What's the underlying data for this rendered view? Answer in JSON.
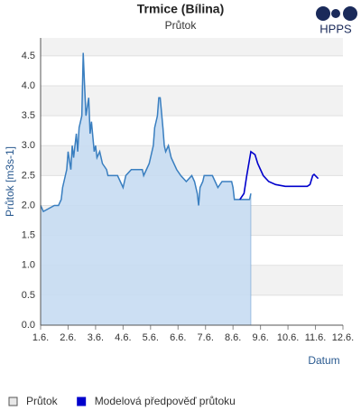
{
  "chart_data": {
    "type": "area",
    "title": "Trmice (Bílina)",
    "subtitle": "Průtok",
    "logo": "HPPS",
    "xlabel": "Datum",
    "ylabel": "Průtok [m3s-1]",
    "xlim": [
      1,
      12
    ],
    "ylim": [
      0,
      4.8
    ],
    "xticks": [
      {
        "value": 1,
        "label": "1.6."
      },
      {
        "value": 2,
        "label": "2.6."
      },
      {
        "value": 3,
        "label": "3.6."
      },
      {
        "value": 4,
        "label": "4.6."
      },
      {
        "value": 5,
        "label": "5.6."
      },
      {
        "value": 6,
        "label": "6.6."
      },
      {
        "value": 7,
        "label": "7.6."
      },
      {
        "value": 8,
        "label": "8.6."
      },
      {
        "value": 9,
        "label": "9.6."
      },
      {
        "value": 10,
        "label": "10.6."
      },
      {
        "value": 11,
        "label": "11.6."
      },
      {
        "value": 12,
        "label": "12.6."
      }
    ],
    "yticks": [
      {
        "value": 0,
        "label": "0.0"
      },
      0.5,
      {
        "value": 1,
        "label": "1.0"
      },
      1.5,
      {
        "value": 2,
        "label": "2.0"
      },
      2.5,
      {
        "value": 3,
        "label": "3.0"
      },
      3.5,
      {
        "value": 4,
        "label": "4.0"
      },
      4.5
    ],
    "grid": true,
    "series": [
      {
        "name": "Průtok",
        "kind": "area",
        "color": "#3a7fc0",
        "fill": "#c6dcf2",
        "x": [
          1.0,
          1.1,
          1.5,
          1.65,
          1.75,
          1.8,
          1.9,
          1.95,
          2.0,
          2.1,
          2.15,
          2.2,
          2.3,
          2.35,
          2.4,
          2.5,
          2.55,
          2.6,
          2.65,
          2.75,
          2.8,
          2.85,
          2.95,
          3.0,
          3.05,
          3.15,
          3.25,
          3.4,
          3.45,
          3.8,
          3.9,
          4.0,
          4.1,
          4.3,
          4.7,
          4.75,
          4.85,
          4.95,
          5.1,
          5.15,
          5.25,
          5.3,
          5.35,
          5.45,
          5.5,
          5.55,
          5.65,
          5.75,
          5.95,
          6.1,
          6.3,
          6.5,
          6.6,
          6.7,
          6.75,
          6.8,
          6.9,
          6.95,
          7.25,
          7.35,
          7.45,
          7.6,
          7.95,
          8.0,
          8.05,
          8.6,
          8.65
        ],
        "values": [
          2.0,
          1.9,
          2.0,
          2.0,
          2.1,
          2.3,
          2.5,
          2.6,
          2.9,
          2.6,
          3.0,
          2.8,
          3.2,
          2.9,
          3.3,
          3.5,
          4.55,
          4.0,
          3.5,
          3.8,
          3.2,
          3.4,
          2.9,
          3.0,
          2.8,
          2.9,
          2.7,
          2.6,
          2.5,
          2.5,
          2.4,
          2.3,
          2.5,
          2.6,
          2.6,
          2.5,
          2.6,
          2.7,
          3.0,
          3.3,
          3.5,
          3.8,
          3.8,
          3.3,
          3.0,
          2.9,
          3.0,
          2.8,
          2.6,
          2.5,
          2.4,
          2.5,
          2.4,
          2.2,
          2.0,
          2.3,
          2.4,
          2.5,
          2.5,
          2.4,
          2.3,
          2.4,
          2.4,
          2.3,
          2.1,
          2.1,
          2.2
        ]
      },
      {
        "name": "Modelová předpověď průtoku",
        "kind": "line",
        "color": "#0000cc",
        "x": [
          8.25,
          8.4,
          8.5,
          8.65,
          8.8,
          8.9,
          9.1,
          9.3,
          9.55,
          9.9,
          10.35,
          10.7,
          10.8,
          10.9,
          10.95,
          11.1
        ],
        "values": [
          2.1,
          2.2,
          2.5,
          2.9,
          2.85,
          2.7,
          2.5,
          2.4,
          2.35,
          2.32,
          2.32,
          2.32,
          2.35,
          2.5,
          2.52,
          2.45
        ]
      }
    ]
  }
}
